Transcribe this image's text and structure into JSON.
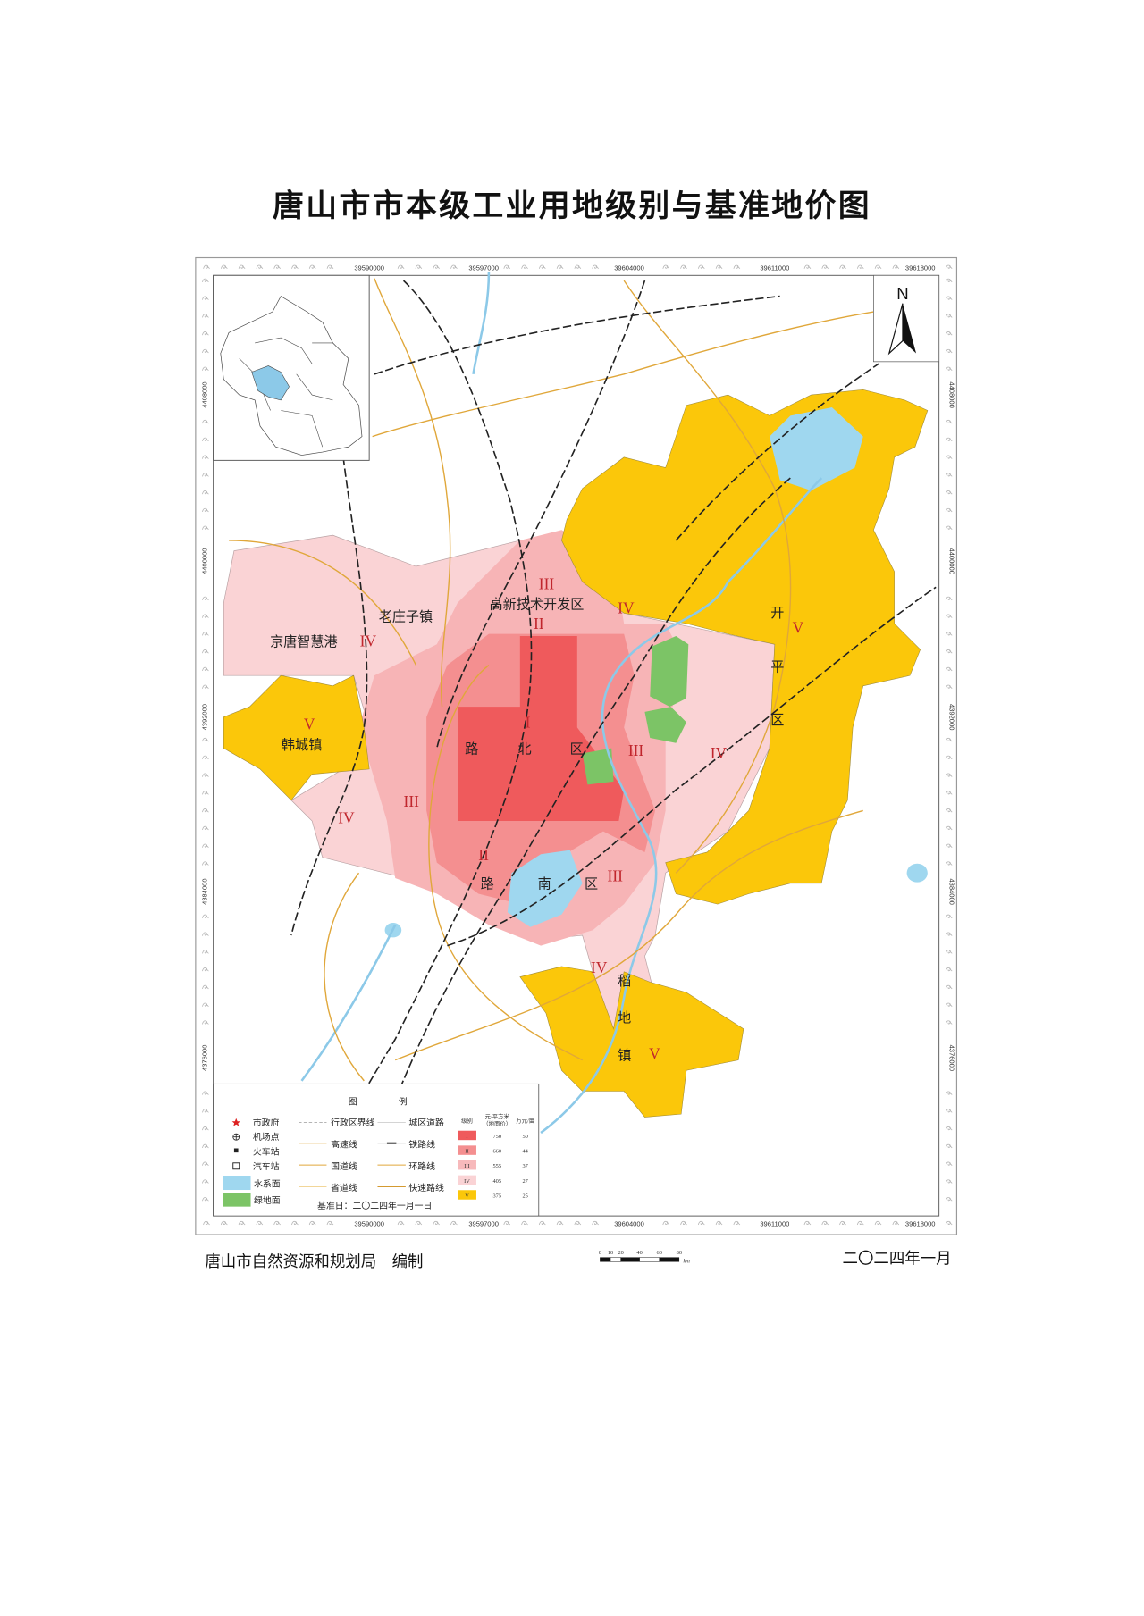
{
  "title": "唐山市市本级工业用地级别与基准地价图",
  "colors": {
    "grade_I": "#ef5a5c",
    "grade_II": "#f48f90",
    "grade_III": "#f7b9bb",
    "grade_IV": "#fad3d5",
    "grade_V": "#fbc70a",
    "water": "#9fd7ef",
    "green": "#7cc466"
  },
  "coords": {
    "x": [
      "39590000",
      "39597000",
      "39604000",
      "39611000",
      "39618000"
    ],
    "y": [
      "4408000",
      "4400000",
      "4392000",
      "4384000",
      "4376000"
    ]
  },
  "north": "N",
  "places": {
    "jingtang": "京唐智慧港",
    "laozhuangzi": "老庄子镇",
    "gaoxin": "高新技术开发区",
    "hancheng": "韩城镇",
    "lubei": [
      "路",
      "北",
      "区"
    ],
    "lunan": [
      "路",
      "南",
      "区"
    ],
    "kaiping": [
      "开",
      "平",
      "区"
    ],
    "daodi": [
      "稻",
      "地",
      "镇"
    ]
  },
  "grades": [
    "I",
    "II",
    "III",
    "IV",
    "V"
  ],
  "legend": {
    "title": [
      "图",
      "例"
    ],
    "points": [
      "市政府",
      "机场点",
      "火车站",
      "汽车站"
    ],
    "areas": [
      "水系面",
      "绿地面"
    ],
    "lines_left": [
      "行政区界线",
      "高速线",
      "国道线",
      "省道线"
    ],
    "lines_right": [
      "城区道路",
      "铁路线",
      "环路线",
      "快速路线"
    ],
    "base_date": "基准日：二〇二四年一月一日",
    "table_headers": [
      "级别",
      "元/平方米",
      "（地面价）",
      "万元/亩"
    ],
    "table_rows": [
      {
        "grade": "I",
        "price_sqm": "750",
        "price_mu": "50"
      },
      {
        "grade": "II",
        "price_sqm": "660",
        "price_mu": "44"
      },
      {
        "grade": "III",
        "price_sqm": "555",
        "price_mu": "37"
      },
      {
        "grade": "IV",
        "price_sqm": "405",
        "price_mu": "27"
      },
      {
        "grade": "V",
        "price_sqm": "375",
        "price_mu": "25"
      }
    ]
  },
  "scale_bar": {
    "ticks": [
      "0",
      "10",
      "20",
      "40",
      "60",
      "80"
    ],
    "unit": "km"
  },
  "footer": {
    "publisher": "唐山市自然资源和规划局　编制",
    "date": "二〇二四年一月"
  }
}
